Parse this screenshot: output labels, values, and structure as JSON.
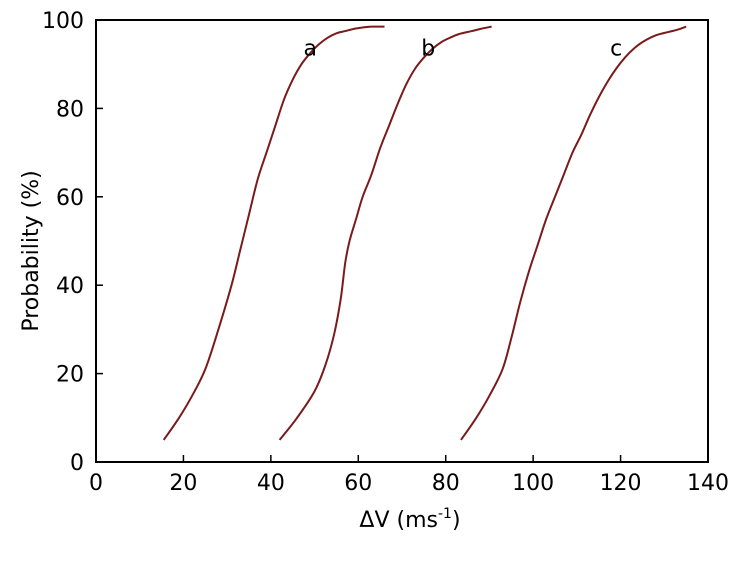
{
  "chart_data": {
    "type": "line",
    "xlabel": "ΔV  (ms",
    "xlabel_superscript": "-1",
    "xlabel_close": ")",
    "ylabel": "Probability (%)",
    "xlim": [
      0,
      140
    ],
    "ylim": [
      0,
      100
    ],
    "x_ticks": [
      0,
      20,
      40,
      60,
      80,
      100,
      120,
      140
    ],
    "y_ticks": [
      0,
      20,
      40,
      60,
      80,
      100
    ],
    "grid": false,
    "line_color": "#7a1a1a",
    "series": [
      {
        "name": "a",
        "x": [
          15.5,
          19,
          22,
          25,
          28,
          31,
          33,
          35,
          37,
          39,
          41,
          43,
          45,
          47,
          49,
          51,
          53,
          55,
          57,
          59,
          61,
          63,
          66
        ],
        "y": [
          5,
          10,
          15,
          21,
          30,
          40,
          48,
          56,
          64,
          70,
          76,
          82,
          86.5,
          90,
          92.5,
          94.5,
          96,
          97,
          97.5,
          98,
          98.3,
          98.5,
          98.5
        ]
      },
      {
        "name": "b",
        "x": [
          42,
          46,
          50,
          52.5,
          54.5,
          56,
          57,
          58,
          59.5,
          61,
          63,
          65,
          67,
          69,
          71,
          73,
          75,
          77,
          79,
          81,
          83,
          86,
          88,
          90.5
        ],
        "y": [
          5,
          10,
          16,
          22,
          29,
          37,
          45,
          50,
          55,
          60,
          65,
          71,
          76,
          81,
          85.5,
          89,
          91.5,
          93.5,
          95,
          96,
          96.8,
          97.5,
          98,
          98.5
        ]
      },
      {
        "name": "c",
        "x": [
          83.5,
          87,
          90,
          93,
          95,
          97,
          99,
          101,
          103,
          105,
          107,
          109,
          111,
          113,
          115,
          117,
          119,
          121,
          123,
          125,
          128,
          131,
          133,
          135
        ],
        "y": [
          5,
          10,
          15,
          21,
          28,
          36,
          43,
          49,
          55,
          60,
          65,
          70,
          74,
          78.5,
          82.5,
          86,
          89,
          91.5,
          93.5,
          95,
          96.5,
          97.3,
          97.8,
          98.5
        ]
      }
    ]
  }
}
